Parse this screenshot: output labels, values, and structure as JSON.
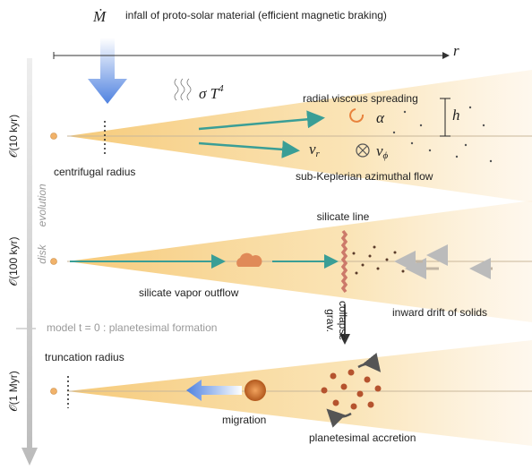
{
  "infall": {
    "symbol": "Ṁ",
    "label": "infall of proto-solar material (efficient magnetic braking)"
  },
  "axis": {
    "label": "r"
  },
  "evolution_axis": {
    "line1": "disk",
    "line2": "evolution"
  },
  "panels": [
    {
      "time": "𝒪(10 kyr)",
      "radius_label": "centrifugal radius",
      "radiation": {
        "base": "σ T",
        "sup": "4"
      },
      "top_label": "radial viscous spreading",
      "bottom_label": "sub-Keplerian azimuthal flow",
      "alpha": "α",
      "height": "h",
      "vr": {
        "base": "v",
        "sub": "r"
      },
      "vphi": {
        "base": "v",
        "sub": "ϕ"
      }
    },
    {
      "time": "𝒪(100 kyr)",
      "line_label": "silicate line",
      "outflow_label": "silicate vapor outflow",
      "drift_label": "inward drift of solids",
      "collapse": {
        "line1": "grav.",
        "line2": "collapse"
      }
    },
    {
      "time": "𝒪(1 Myr)",
      "radius_label": "truncation radius",
      "migration_label": "migration",
      "accretion_label": "planetesimal accretion"
    }
  ],
  "divider": {
    "label": "model t = 0 : planetesimal formation"
  }
}
